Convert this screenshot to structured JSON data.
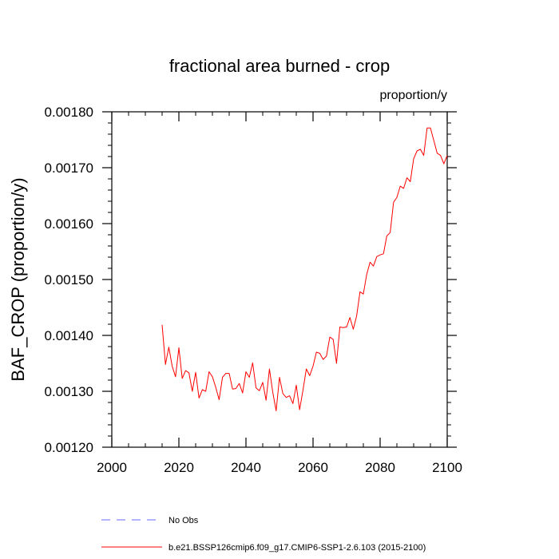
{
  "chart_data": {
    "type": "line",
    "title": "fractional area burned - crop",
    "units_label": "proportion/y",
    "ylabel": "BAF_CROP  (proportion/y)",
    "xlabel": "",
    "xlim": [
      2000,
      2100
    ],
    "ylim": [
      0.0012,
      0.0018
    ],
    "x_ticks": [
      2000,
      2020,
      2040,
      2060,
      2080,
      2100
    ],
    "y_ticks": [
      0.0012,
      0.0013,
      0.0014,
      0.0015,
      0.0016,
      0.0017,
      0.0018
    ],
    "x_tick_labels": [
      "2000",
      "2020",
      "2040",
      "2060",
      "2080",
      "2100"
    ],
    "y_tick_labels": [
      "0.00120",
      "0.00130",
      "0.00140",
      "0.00150",
      "0.00160",
      "0.00170",
      "0.00180"
    ],
    "grid": false,
    "legend_position": "bottom",
    "legend": [
      {
        "label": "No Obs",
        "color": "#6b6bff",
        "style": "dashed"
      },
      {
        "label": "b.e21.BSSP126cmip6.f09_g17.CMIP6-SSP1-2.6.103 (2015-2100)",
        "color": "#ff0000",
        "style": "solid"
      }
    ],
    "series": [
      {
        "name": "b.e21.BSSP126cmip6.f09_g17.CMIP6-SSP1-2.6.103 (2015-2100)",
        "color": "#ff0000",
        "x": [
          2015,
          2016,
          2017,
          2018,
          2019,
          2020,
          2021,
          2022,
          2023,
          2024,
          2025,
          2026,
          2027,
          2028,
          2029,
          2030,
          2031,
          2032,
          2033,
          2034,
          2035,
          2036,
          2037,
          2038,
          2039,
          2040,
          2041,
          2042,
          2043,
          2044,
          2045,
          2046,
          2047,
          2048,
          2049,
          2050,
          2051,
          2052,
          2053,
          2054,
          2055,
          2056,
          2057,
          2058,
          2059,
          2060,
          2061,
          2062,
          2063,
          2064,
          2065,
          2066,
          2067,
          2068,
          2069,
          2070,
          2071,
          2072,
          2073,
          2074,
          2075,
          2076,
          2077,
          2078,
          2079,
          2080,
          2081,
          2082,
          2083,
          2084,
          2085,
          2086,
          2087,
          2088,
          2089,
          2090,
          2091,
          2092,
          2093,
          2094,
          2095,
          2096,
          2097,
          2098,
          2099,
          2100
        ],
        "y": [
          0.001419,
          0.001348,
          0.001379,
          0.001345,
          0.001326,
          0.001378,
          0.001323,
          0.001337,
          0.001333,
          0.0013,
          0.001334,
          0.001288,
          0.001303,
          0.0013,
          0.001335,
          0.001326,
          0.001307,
          0.001285,
          0.001325,
          0.001332,
          0.001332,
          0.001304,
          0.001305,
          0.001314,
          0.001297,
          0.001335,
          0.001325,
          0.001351,
          0.001306,
          0.001301,
          0.001316,
          0.001284,
          0.00134,
          0.001298,
          0.001265,
          0.001325,
          0.001296,
          0.001289,
          0.001292,
          0.001278,
          0.001311,
          0.001267,
          0.001302,
          0.00134,
          0.001328,
          0.001345,
          0.00137,
          0.001368,
          0.001357,
          0.001363,
          0.001397,
          0.001393,
          0.00135,
          0.001415,
          0.001414,
          0.001415,
          0.001432,
          0.001411,
          0.001435,
          0.001478,
          0.001474,
          0.001509,
          0.001531,
          0.001524,
          0.001541,
          0.001544,
          0.001546,
          0.001578,
          0.001584,
          0.001638,
          0.001647,
          0.001667,
          0.001663,
          0.001682,
          0.001675,
          0.001716,
          0.00173,
          0.001733,
          0.001722,
          0.001771,
          0.001771,
          0.001749,
          0.001726,
          0.001722,
          0.001707,
          0.001722
        ]
      }
    ]
  }
}
